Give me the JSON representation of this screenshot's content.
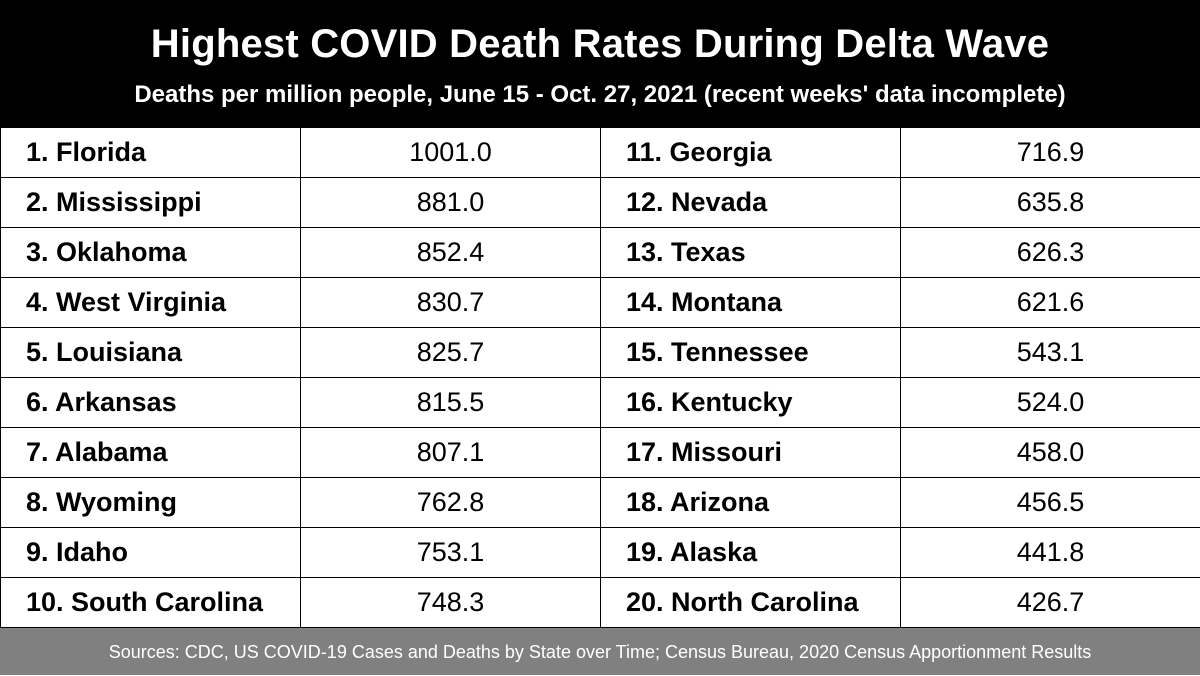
{
  "chart_data": {
    "type": "table",
    "title": "Highest COVID Death Rates During Delta Wave",
    "subtitle": "Deaths per million people, June 15 - Oct. 27, 2021 (recent weeks' data incomplete)",
    "unit": "Deaths per million people",
    "rows_left": [
      {
        "label": "1. Florida",
        "value": "1001.0"
      },
      {
        "label": "2. Mississippi",
        "value": "881.0"
      },
      {
        "label": "3. Oklahoma",
        "value": "852.4"
      },
      {
        "label": "4. West Virginia",
        "value": "830.7"
      },
      {
        "label": "5. Louisiana",
        "value": "825.7"
      },
      {
        "label": "6. Arkansas",
        "value": "815.5"
      },
      {
        "label": "7. Alabama",
        "value": "807.1"
      },
      {
        "label": "8. Wyoming",
        "value": "762.8"
      },
      {
        "label": "9. Idaho",
        "value": "753.1"
      },
      {
        "label": "10. South Carolina",
        "value": "748.3"
      }
    ],
    "rows_right": [
      {
        "label": "11. Georgia",
        "value": "716.9"
      },
      {
        "label": "12. Nevada",
        "value": "635.8"
      },
      {
        "label": "13. Texas",
        "value": "626.3"
      },
      {
        "label": "14. Montana",
        "value": "621.6"
      },
      {
        "label": "15. Tennessee",
        "value": "543.1"
      },
      {
        "label": "16. Kentucky",
        "value": "524.0"
      },
      {
        "label": "17. Missouri",
        "value": "458.0"
      },
      {
        "label": "18. Arizona",
        "value": "456.5"
      },
      {
        "label": "19. Alaska",
        "value": "441.8"
      },
      {
        "label": "20. North Carolina",
        "value": "426.7"
      }
    ],
    "source": "Sources: CDC, US COVID-19 Cases and Deaths by State over Time; Census Bureau, 2020 Census Apportionment Results"
  },
  "colors": {
    "header_bg": "#000000",
    "header_text": "#ffffff",
    "cell_bg": "#ffffff",
    "footer_bg": "#808080",
    "footer_text": "#ffffff"
  }
}
